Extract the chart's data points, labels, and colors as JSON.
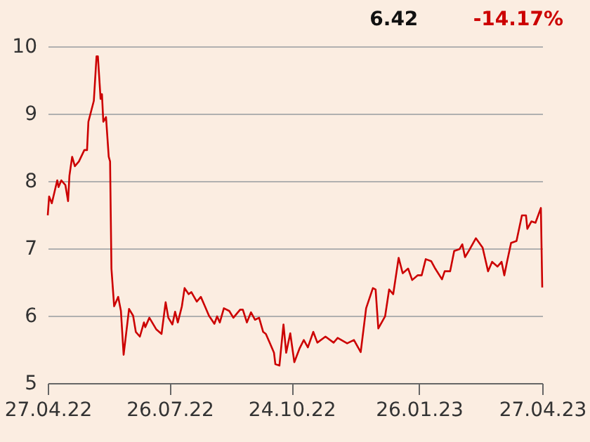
{
  "chart_data": {
    "type": "line",
    "annotations": [
      "6.42",
      "-14.17%"
    ],
    "x": [
      "2022-04-27",
      "2022-04-28",
      "2022-04-30",
      "2022-05-04",
      "2022-05-05",
      "2022-05-07",
      "2022-05-10",
      "2022-05-12",
      "2022-05-13",
      "2022-05-15",
      "2022-05-17",
      "2022-05-20",
      "2022-05-24",
      "2022-05-26",
      "2022-05-27",
      "2022-05-31",
      "2022-06-02",
      "2022-06-03",
      "2022-06-05",
      "2022-06-06",
      "2022-06-07",
      "2022-06-09",
      "2022-06-11",
      "2022-06-12",
      "2022-06-13",
      "2022-06-15",
      "2022-06-18",
      "2022-06-20",
      "2022-06-22",
      "2022-06-26",
      "2022-06-29",
      "2022-07-01",
      "2022-07-04",
      "2022-07-07",
      "2022-07-08",
      "2022-07-11",
      "2022-07-16",
      "2022-07-20",
      "2022-07-23",
      "2022-07-25",
      "2022-07-28",
      "2022-07-30",
      "2022-08-01",
      "2022-08-04",
      "2022-08-06",
      "2022-08-09",
      "2022-08-11",
      "2022-08-15",
      "2022-08-18",
      "2022-08-21",
      "2022-08-24",
      "2022-08-28",
      "2022-08-30",
      "2022-09-01",
      "2022-09-04",
      "2022-09-08",
      "2022-09-11",
      "2022-09-16",
      "2022-09-18",
      "2022-09-21",
      "2022-09-24",
      "2022-09-27",
      "2022-09-30",
      "2022-10-03",
      "2022-10-05",
      "2022-10-08",
      "2022-10-11",
      "2022-10-12",
      "2022-10-15",
      "2022-10-18",
      "2022-10-20",
      "2022-10-23",
      "2022-10-26",
      "2022-10-30",
      "2022-11-02",
      "2022-11-05",
      "2022-11-09",
      "2022-11-12",
      "2022-11-18",
      "2022-11-24",
      "2022-11-27",
      "2022-12-04",
      "2022-12-09",
      "2022-12-14",
      "2022-12-18",
      "2022-12-23",
      "2022-12-25",
      "2022-12-27",
      "2023-01-01",
      "2023-01-04",
      "2023-01-07",
      "2023-01-11",
      "2023-01-14",
      "2023-01-18",
      "2023-01-21",
      "2023-01-25",
      "2023-01-28",
      "2023-01-31",
      "2023-02-04",
      "2023-02-07",
      "2023-02-12",
      "2023-02-14",
      "2023-02-18",
      "2023-02-21",
      "2023-02-25",
      "2023-02-27",
      "2023-03-01",
      "2023-03-04",
      "2023-03-09",
      "2023-03-14",
      "2023-03-18",
      "2023-03-21",
      "2023-03-25",
      "2023-03-28",
      "2023-03-30",
      "2023-04-01",
      "2023-04-04",
      "2023-04-08",
      "2023-04-12",
      "2023-04-15",
      "2023-04-16",
      "2023-04-19",
      "2023-04-22",
      "2023-04-26",
      "2023-04-27"
    ],
    "series": [
      {
        "color": "#cc0000",
        "values": [
          7.49,
          7.77,
          7.67,
          8.01,
          7.91,
          8.01,
          7.94,
          7.7,
          8.08,
          8.36,
          8.22,
          8.29,
          8.46,
          8.46,
          8.88,
          9.19,
          9.85,
          9.85,
          9.22,
          9.29,
          8.88,
          8.95,
          8.36,
          8.29,
          6.7,
          6.14,
          6.28,
          6.07,
          5.42,
          6.1,
          6.0,
          5.76,
          5.69,
          5.9,
          5.83,
          5.97,
          5.8,
          5.73,
          6.2,
          5.97,
          5.87,
          6.06,
          5.9,
          6.14,
          6.41,
          6.32,
          6.35,
          6.21,
          6.28,
          6.14,
          6.0,
          5.88,
          5.99,
          5.9,
          6.11,
          6.07,
          5.97,
          6.09,
          6.09,
          5.9,
          6.05,
          5.94,
          5.97,
          5.76,
          5.73,
          5.59,
          5.45,
          5.28,
          5.26,
          5.87,
          5.45,
          5.74,
          5.31,
          5.52,
          5.64,
          5.53,
          5.76,
          5.6,
          5.69,
          5.6,
          5.67,
          5.59,
          5.64,
          5.46,
          6.11,
          6.41,
          6.39,
          5.81,
          5.99,
          6.39,
          6.32,
          6.86,
          6.63,
          6.7,
          6.53,
          6.6,
          6.6,
          6.84,
          6.81,
          6.7,
          6.54,
          6.66,
          6.66,
          6.96,
          6.99,
          7.06,
          6.87,
          6.97,
          7.15,
          7.01,
          6.66,
          6.8,
          6.73,
          6.8,
          6.6,
          6.8,
          7.08,
          7.11,
          7.49,
          7.49,
          7.29,
          7.4,
          7.38,
          7.6,
          6.42
        ]
      }
    ],
    "xlim": [
      "2022-04-27",
      "2023-04-27"
    ],
    "xticks": [
      {
        "value": "2022-04-27",
        "label": "27.04.22"
      },
      {
        "value": "2022-07-26",
        "label": "26.07.22"
      },
      {
        "value": "2022-10-24",
        "label": "24.10.22"
      },
      {
        "value": "2023-01-26",
        "label": "26.01.23"
      },
      {
        "value": "2023-04-27",
        "label": "27.04.23"
      }
    ],
    "ylim": [
      5,
      10
    ],
    "yticks": [
      5,
      6,
      7,
      8,
      9,
      10
    ],
    "grid": "y",
    "marker": "none",
    "line_style": "solid"
  }
}
